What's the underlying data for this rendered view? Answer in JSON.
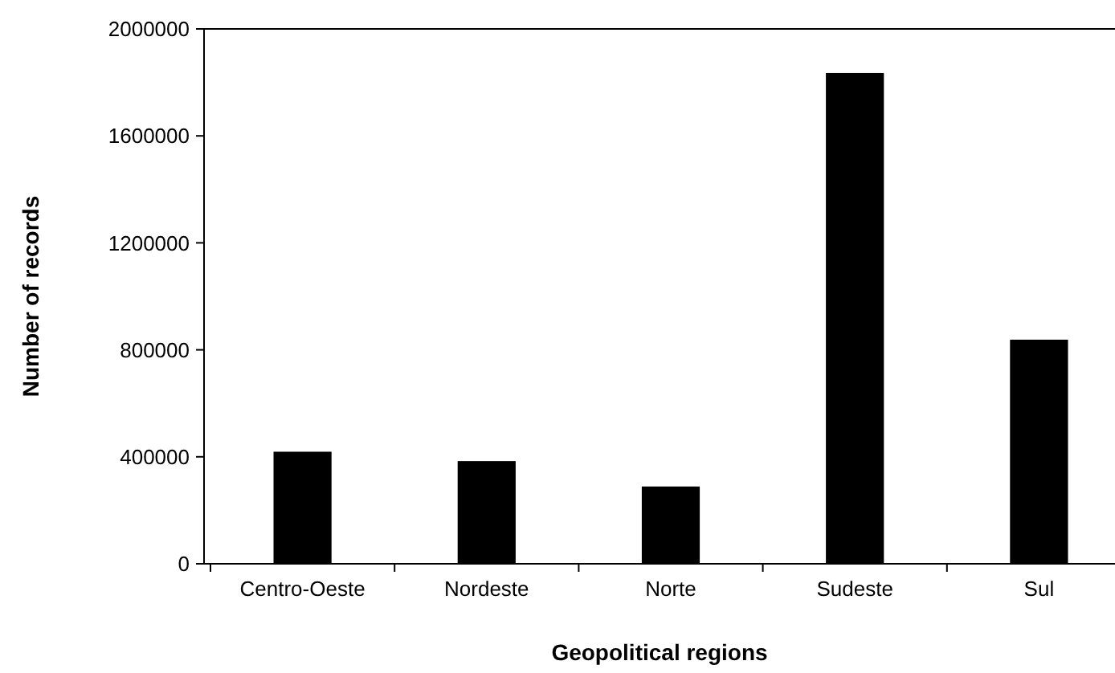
{
  "chart_data": {
    "type": "bar",
    "xlabel": "Geopolitical regions",
    "ylabel": "Number of records",
    "categories": [
      "Centro-Oeste",
      "Nordeste",
      "Norte",
      "Sudeste",
      "Sul"
    ],
    "values": [
      419000,
      384000,
      289000,
      1835000,
      838000
    ],
    "color": "#000000",
    "ylim": [
      0,
      2000000
    ],
    "yticks": [
      0,
      400000,
      800000,
      1200000,
      1600000,
      2000000
    ],
    "grid": false
  }
}
